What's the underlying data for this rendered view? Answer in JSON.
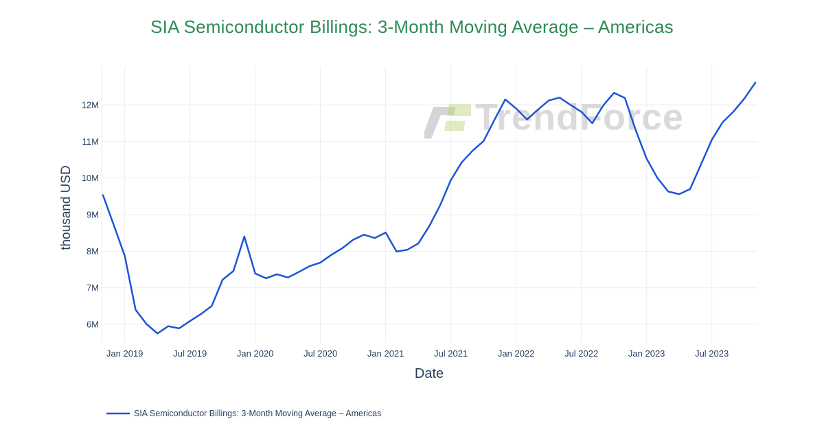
{
  "title": {
    "text": "SIA Semiconductor Billings: 3-Month Moving Average – Americas"
  },
  "watermark": {
    "text": "TrendForce"
  },
  "legend": {
    "label": "SIA Semiconductor Billings: 3-Month Moving Average – Americas",
    "line_color": "#1a56d6"
  },
  "colors": {
    "title": "#2e8b57",
    "axis_text": "#2a3f5f",
    "grid": "#eceef1",
    "line": "#1a56d6",
    "watermark": "rgba(168,168,168,0.42)",
    "logo_gray": "rgba(150,150,150,0.40)",
    "logo_green": "rgba(186,210,120,0.45)"
  },
  "chart_data": {
    "type": "line",
    "title": "SIA Semiconductor Billings: 3-Month Moving Average – Americas",
    "xlabel": "Date",
    "ylabel": "thousand USD",
    "grid": true,
    "legend_position": "bottom-left",
    "ylim": [
      5.5,
      13.05
    ],
    "yticks": {
      "values": [
        6,
        7,
        8,
        9,
        10,
        11,
        12
      ],
      "labels": [
        "6M",
        "7M",
        "8M",
        "9M",
        "10M",
        "11M",
        "12M"
      ]
    },
    "xticks": {
      "indices": [
        2,
        8,
        14,
        20,
        26,
        32,
        38,
        44,
        50,
        56
      ],
      "labels": [
        "Jan 2019",
        "Jul 2019",
        "Jan 2020",
        "Jul 2020",
        "Jan 2021",
        "Jul 2021",
        "Jan 2022",
        "Jul 2022",
        "Jan 2023",
        "Jul 2023"
      ]
    },
    "x": [
      "Nov 2018",
      "Dec 2018",
      "Jan 2019",
      "Feb 2019",
      "Mar 2019",
      "Apr 2019",
      "May 2019",
      "Jun 2019",
      "Jul 2019",
      "Aug 2019",
      "Sep 2019",
      "Oct 2019",
      "Nov 2019",
      "Dec 2019",
      "Jan 2020",
      "Feb 2020",
      "Mar 2020",
      "Apr 2020",
      "May 2020",
      "Jun 2020",
      "Jul 2020",
      "Aug 2020",
      "Sep 2020",
      "Oct 2020",
      "Nov 2020",
      "Dec 2020",
      "Jan 2021",
      "Feb 2021",
      "Mar 2021",
      "Apr 2021",
      "May 2021",
      "Jun 2021",
      "Jul 2021",
      "Aug 2021",
      "Sep 2021",
      "Oct 2021",
      "Nov 2021",
      "Dec 2021",
      "Jan 2022",
      "Feb 2022",
      "Mar 2022",
      "Apr 2022",
      "May 2022",
      "Jun 2022",
      "Jul 2022",
      "Aug 2022",
      "Sep 2022",
      "Oct 2022",
      "Nov 2022",
      "Dec 2022",
      "Jan 2023",
      "Feb 2023",
      "Mar 2023",
      "Apr 2023",
      "May 2023",
      "Jun 2023",
      "Jul 2023",
      "Aug 2023",
      "Sep 2023",
      "Oct 2023",
      "Nov 2023"
    ],
    "series": [
      {
        "name": "SIA Semiconductor Billings: 3-Month Moving Average – Americas",
        "color": "#1a56d6",
        "unit": "M (thousand USD)",
        "values": [
          9.53,
          8.71,
          7.87,
          6.4,
          6.01,
          5.75,
          5.95,
          5.89,
          6.09,
          6.28,
          6.5,
          7.22,
          7.46,
          8.4,
          7.39,
          7.26,
          7.37,
          7.28,
          7.43,
          7.59,
          7.69,
          7.9,
          8.08,
          8.31,
          8.45,
          8.36,
          8.51,
          7.99,
          8.04,
          8.21,
          8.68,
          9.25,
          9.95,
          10.43,
          10.75,
          11.01,
          11.59,
          12.15,
          11.9,
          11.6,
          11.87,
          12.12,
          12.2,
          12.0,
          11.81,
          11.5,
          11.98,
          12.33,
          12.19,
          11.31,
          10.53,
          10.0,
          9.63,
          9.56,
          9.7,
          10.37,
          11.05,
          11.53,
          11.82,
          12.18,
          12.61
        ]
      }
    ]
  }
}
